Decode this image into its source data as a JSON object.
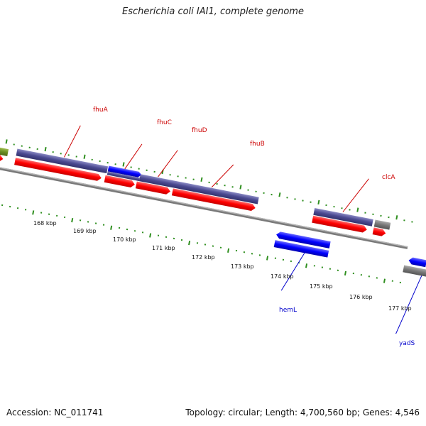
{
  "title": "Escherichia coli IAI1, complete genome",
  "footer": {
    "accession": "Accession: NC_011741",
    "stats": "Topology: circular; Length: 4,700,560 bp; Genes: 4,546"
  },
  "colors": {
    "background": "#ffffff",
    "backbone": "#808080",
    "tick": "#2f8f1f",
    "gene_red": "#ff0000",
    "gene_purple": "#4b4a91",
    "gene_blue": "#0000ff",
    "gene_gray": "#777777",
    "gene_olive": "#6b8e23",
    "label_red": "#cc0000",
    "label_blue": "#0000cc"
  },
  "kbp_labels": [
    "168 kbp",
    "169 kbp",
    "170 kbp",
    "171 kbp",
    "172 kbp",
    "173 kbp",
    "174 kbp",
    "175 kbp",
    "176 kbp",
    "177 kbp"
  ],
  "gene_labels": [
    {
      "name": "fhuA",
      "color": "red"
    },
    {
      "name": "fhuC",
      "color": "red"
    },
    {
      "name": "fhuD",
      "color": "red"
    },
    {
      "name": "fhuB",
      "color": "red"
    },
    {
      "name": "clcA",
      "color": "red"
    },
    {
      "name": "hemL",
      "color": "blue"
    },
    {
      "name": "yadS",
      "color": "blue"
    }
  ]
}
